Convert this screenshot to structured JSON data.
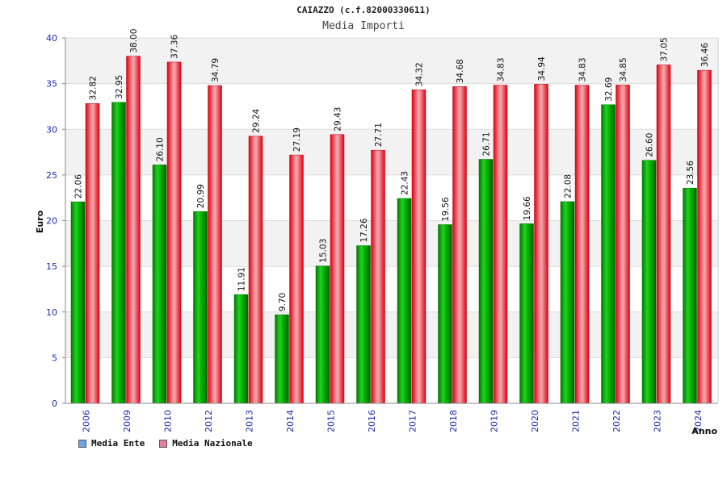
{
  "chart_data": {
    "type": "bar",
    "title": "CAIAZZO (c.f.82000330611)",
    "subtitle": "Media Importi",
    "xlabel": "Anno",
    "ylabel": "Euro",
    "ylim": [
      0,
      40
    ],
    "yticks": [
      0,
      5,
      10,
      15,
      20,
      25,
      30,
      35,
      40
    ],
    "categories": [
      "2006",
      "2009",
      "2010",
      "2012",
      "2013",
      "2014",
      "2015",
      "2016",
      "2017",
      "2018",
      "2019",
      "2020",
      "2021",
      "2022",
      "2023",
      "2024"
    ],
    "series": [
      {
        "name": "Media Ente",
        "color": "#00b000",
        "legend_color": "#6fa8e0",
        "values": [
          22.06,
          32.95,
          26.1,
          20.99,
          11.91,
          9.7,
          15.03,
          17.26,
          22.43,
          19.56,
          26.71,
          19.66,
          22.08,
          32.69,
          26.6,
          23.56
        ],
        "labels": [
          "22.06",
          "32.95",
          "26.10",
          "20.99",
          "11.91",
          "9.70",
          "15.03",
          "17.26",
          "22.43",
          "19.56",
          "26.71",
          "19.66",
          "22.08",
          "32.69",
          "26.60",
          "23.56"
        ]
      },
      {
        "name": "Media Nazionale",
        "color": "#e01020",
        "legend_color": "#e07fa0",
        "values": [
          32.82,
          38.0,
          37.36,
          34.79,
          29.24,
          27.19,
          29.43,
          27.71,
          34.32,
          34.68,
          34.83,
          34.94,
          34.83,
          34.85,
          37.05,
          36.46
        ],
        "labels": [
          "32.82",
          "38.00",
          "37.36",
          "34.79",
          "29.24",
          "27.19",
          "29.43",
          "27.71",
          "34.32",
          "34.68",
          "34.83",
          "34.94",
          "34.83",
          "34.85",
          "37.05",
          "36.46"
        ]
      }
    ],
    "grid": true,
    "legend_position": "bottom-left"
  }
}
